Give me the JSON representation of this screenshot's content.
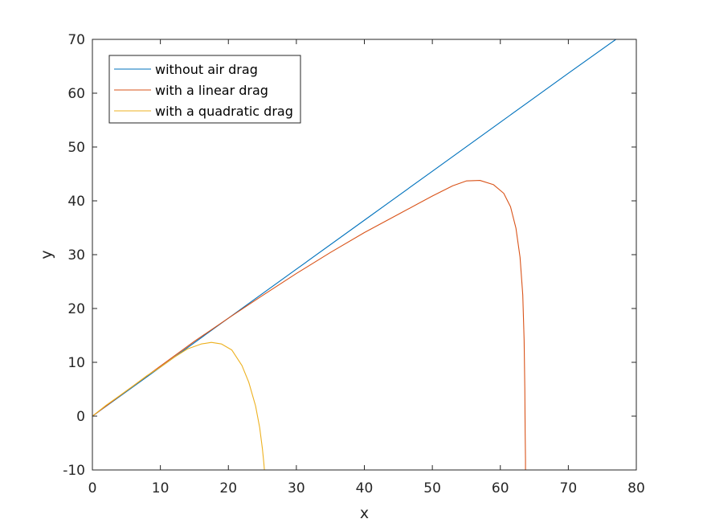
{
  "chart_data": {
    "type": "line",
    "title": "",
    "xlabel": "x",
    "ylabel": "y",
    "xlim": [
      0,
      80
    ],
    "ylim": [
      -10,
      70
    ],
    "xticks": [
      0,
      10,
      20,
      30,
      40,
      50,
      60,
      70,
      80
    ],
    "yticks": [
      -10,
      0,
      10,
      20,
      30,
      40,
      50,
      60,
      70
    ],
    "grid": false,
    "legend_position": "top-left",
    "series": [
      {
        "name": "without air drag",
        "color": "#0072BD",
        "x": [
          0,
          10,
          20,
          30,
          40,
          50,
          60,
          70,
          77
        ],
        "y": [
          0,
          9.1,
          18.2,
          27.3,
          36.4,
          45.5,
          54.6,
          63.7,
          70
        ]
      },
      {
        "name": "with a linear drag",
        "color": "#D95319",
        "x": [
          0,
          5,
          10,
          15,
          20,
          25,
          30,
          35,
          40,
          45,
          50,
          53,
          55,
          57,
          59,
          60.5,
          61.5,
          62.3,
          62.9,
          63.3,
          63.5,
          63.6,
          63.65,
          63.7,
          63.7
        ],
        "y": [
          0,
          4.7,
          9.3,
          13.9,
          18.2,
          22.4,
          26.5,
          30.4,
          34.1,
          37.5,
          40.9,
          42.8,
          43.7,
          43.8,
          43.0,
          41.4,
          38.9,
          34.9,
          29.5,
          22.5,
          14.0,
          5.0,
          -3.0,
          -8.0,
          -10.0
        ]
      },
      {
        "name": "with a quadratic drag",
        "color": "#EDB120",
        "x": [
          0,
          2,
          4,
          6,
          8,
          10,
          12,
          14,
          16,
          17.5,
          19,
          20.5,
          22,
          23,
          24,
          24.6,
          25,
          25.2,
          25.3
        ],
        "y": [
          0,
          2.0,
          3.8,
          5.6,
          7.5,
          9.1,
          10.9,
          12.5,
          13.4,
          13.7,
          13.4,
          12.3,
          9.4,
          6.3,
          1.9,
          -2.1,
          -6.0,
          -8.5,
          -10.0
        ]
      }
    ]
  }
}
